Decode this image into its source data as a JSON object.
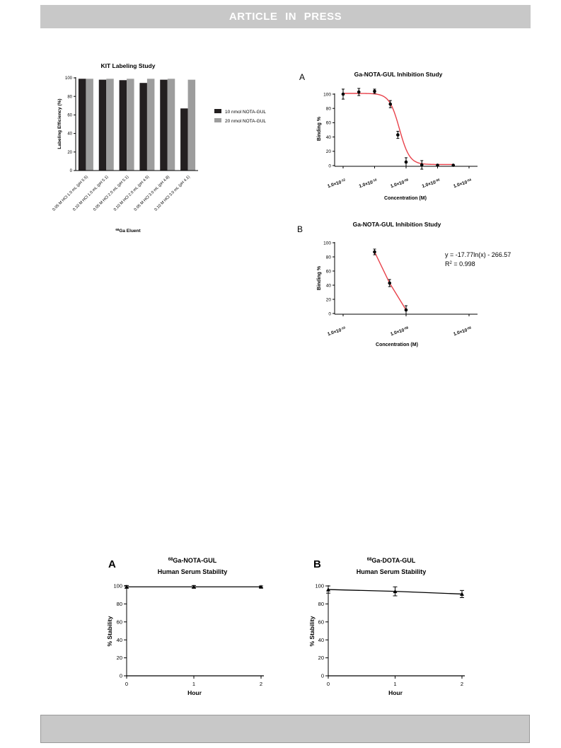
{
  "header": {
    "banner_text": "ARTICLE IN PRESS"
  },
  "colors": {
    "bar_dark": "#231f20",
    "bar_light": "#9d9d9d",
    "fit_line": "#e8414a",
    "banner": "#c8c8c8"
  },
  "chart_data": [
    {
      "id": "kit",
      "type": "bar",
      "title": "KIT Labeling Study",
      "xlabel_prefix": "68",
      "xlabel_main": "Ga Eluent",
      "ylabel": "Labeling Efficiency (%)",
      "ylim": [
        0,
        100
      ],
      "yticks": [
        "0",
        "20",
        "40",
        "60",
        "80",
        "100"
      ],
      "legend_position": "right",
      "categories": [
        "0.05 M HCl 1.0 mL (pH 5.5)",
        "0.10 M HCl 1.0 mL (pH 5.1)",
        "0.05 M HCl 2.0 mL (pH 5.1)",
        "0.10 M HCl 2.0 mL (pH 4.5)",
        "0.05 M HCl 3.0 mL (pH 4.8)",
        "0.10 M HCl 3.0 mL (pH 4.1)"
      ],
      "series": [
        {
          "name": "10 nmol NOTA-GUL",
          "values": [
            99,
            98,
            97.5,
            94.5,
            98,
            67
          ]
        },
        {
          "name": "20 nmol NOTA-GUL",
          "values": [
            99,
            99,
            99,
            99,
            99,
            98
          ]
        }
      ]
    },
    {
      "id": "inhibA",
      "type": "scatter",
      "panel_label": "A",
      "title": "Ga-NOTA-GUL Inhibition Study",
      "xlabel": "Concentration (M)",
      "ylabel": "Binding %",
      "x_scale": "log",
      "xlim": [
        1e-12,
        0.0001
      ],
      "ylim": [
        0,
        100
      ],
      "yticks": [
        "0",
        "20",
        "40",
        "60",
        "80",
        "100"
      ],
      "xtick_labels": [
        {
          "base": "1.0×10",
          "exp": "-12"
        },
        {
          "base": "1.0×10",
          "exp": "-10"
        },
        {
          "base": "1.0×10",
          "exp": "-08"
        },
        {
          "base": "1.0×10",
          "exp": "-06"
        },
        {
          "base": "1.0×10",
          "exp": "-04"
        }
      ],
      "series": [
        {
          "x": [
            1e-12,
            1e-11,
            1e-10,
            1e-09,
            3e-09,
            1e-08,
            1e-07,
            1e-06,
            1e-05
          ],
          "y": [
            100,
            103,
            104,
            86,
            43,
            5,
            1,
            0.5,
            0.5
          ],
          "err": [
            7,
            5,
            3,
            5,
            5,
            6,
            6,
            0,
            0
          ]
        }
      ],
      "fit": {
        "type": "sigmoid",
        "top": 101,
        "bottom": 1.5,
        "log_ic50": -8.42,
        "hill": -1.35
      }
    },
    {
      "id": "inhibB",
      "type": "line",
      "panel_label": "B",
      "title": "Ga-NOTA-GUL Inhibition Study",
      "xlabel": "Concentration (M)",
      "ylabel": "Binding %",
      "x_scale": "log",
      "xlim": [
        1e-10,
        1e-06
      ],
      "ylim": [
        0,
        100
      ],
      "yticks": [
        "0",
        "20",
        "40",
        "60",
        "80",
        "100"
      ],
      "xtick_labels": [
        {
          "base": "1.0×10",
          "exp": "-10"
        },
        {
          "base": "1.0×10",
          "exp": "-08"
        },
        {
          "base": "1.0×10",
          "exp": "-06"
        }
      ],
      "series": [
        {
          "x": [
            1e-09,
            3e-09,
            1e-08
          ],
          "y": [
            87,
            43,
            5
          ],
          "err": [
            4,
            5,
            6
          ]
        }
      ],
      "annotation": {
        "equation": "y = -17.77ln(x) - 266.57",
        "r2_prefix": "R",
        "r2_sup": "2",
        "r2_value": " = 0.998"
      }
    },
    {
      "id": "stabA",
      "type": "line",
      "panel_label": "A",
      "title_sup": "68",
      "title_line1": "Ga-NOTA-GUL",
      "title_line2": "Human Serum Stability",
      "xlabel": "Hour",
      "ylabel": "% Stability",
      "xlim": [
        0,
        2
      ],
      "ylim": [
        0,
        100
      ],
      "yticks": [
        "0",
        "20",
        "40",
        "60",
        "80",
        "100"
      ],
      "xticks": [
        "0",
        "1",
        "2"
      ],
      "series": [
        {
          "x": [
            0,
            1,
            2
          ],
          "y": [
            99,
            99,
            99
          ],
          "err": [
            1.5,
            1.5,
            1
          ]
        }
      ]
    },
    {
      "id": "stabB",
      "type": "line",
      "panel_label": "B",
      "title_sup": "68",
      "title_line1": "Ga-DOTA-GUL",
      "title_line2": "Human Serum Stability",
      "xlabel": "Hour",
      "ylabel": "% Stability",
      "xlim": [
        0,
        2
      ],
      "ylim": [
        0,
        100
      ],
      "yticks": [
        "0",
        "20",
        "40",
        "60",
        "80",
        "100"
      ],
      "xticks": [
        "0",
        "1",
        "2"
      ],
      "series": [
        {
          "x": [
            0,
            1,
            2
          ],
          "y": [
            96,
            94,
            91
          ],
          "err": [
            4,
            5,
            4
          ]
        }
      ]
    }
  ]
}
